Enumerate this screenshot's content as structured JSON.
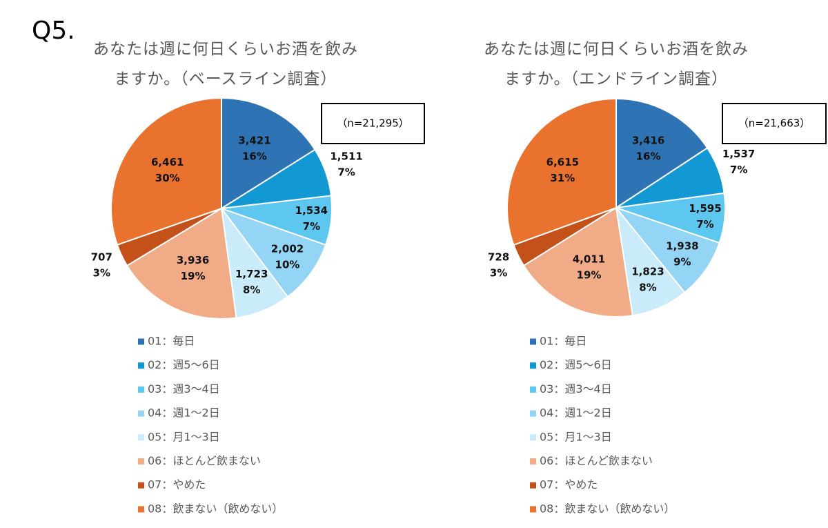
{
  "heading": "Q5.",
  "chart_data": [
    {
      "type": "pie",
      "title": [
        "あなたは週に何日くらいお酒を飲み",
        "ますか。（ベースライン調査）"
      ],
      "note": "（n=21,295）",
      "categories": [
        "01：毎日",
        "02：週5～6日",
        "03：週3～4日",
        "04：週1～2日",
        "05：月1～3日",
        "06：ほとんど飲まない",
        "07：やめた",
        "08：飲まない（飲めない）"
      ],
      "values": [
        3421,
        1511,
        1534,
        2002,
        1723,
        3936,
        707,
        6461
      ],
      "value_labels": [
        "3,421",
        "1,511",
        "1,534",
        "2,002",
        "1,723",
        "3,936",
        "707",
        "6,461"
      ],
      "percent_labels": [
        "16%",
        "7%",
        "7%",
        "10%",
        "8%",
        "19%",
        "3%",
        "30%"
      ],
      "colors": [
        "#2e74b5",
        "#1299d4",
        "#5ec7f0",
        "#94d5f5",
        "#c9ebfa",
        "#f1ab86",
        "#c4511a",
        "#e9722f"
      ]
    },
    {
      "type": "pie",
      "title": [
        "あなたは週に何日くらいお酒を飲み",
        "ますか。（エンドライン調査）"
      ],
      "note": "（n=21,663）",
      "categories": [
        "01：毎日",
        "02：週5～6日",
        "03：週3～4日",
        "04：週1～2日",
        "05：月1～3日",
        "06：ほとんど飲まない",
        "07：やめた",
        "08：飲まない（飲めない）"
      ],
      "values": [
        3416,
        1537,
        1595,
        1938,
        1823,
        4011,
        728,
        6615
      ],
      "value_labels": [
        "3,416",
        "1,537",
        "1,595",
        "1,938",
        "1,823",
        "4,011",
        "728",
        "6,615"
      ],
      "percent_labels": [
        "16%",
        "7%",
        "7%",
        "9%",
        "8%",
        "19%",
        "3%",
        "31%"
      ],
      "colors": [
        "#2e74b5",
        "#1299d4",
        "#5ec7f0",
        "#94d5f5",
        "#c9ebfa",
        "#f1ab86",
        "#c4511a",
        "#e9722f"
      ]
    }
  ]
}
